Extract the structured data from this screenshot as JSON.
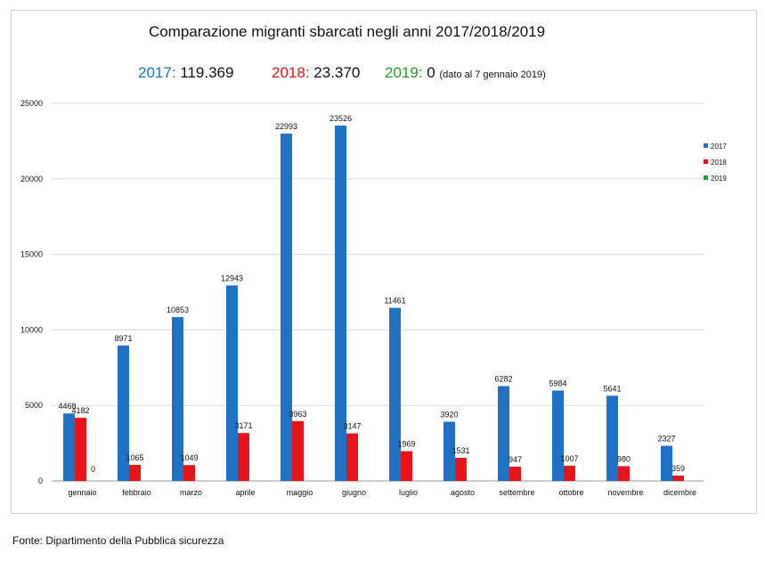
{
  "header": {
    "title": "Comparazione migranti sbarcati negli anni 2017/2018/2019",
    "totals": [
      {
        "label": "2017:",
        "value": "119.369",
        "color": "#1f72c4"
      },
      {
        "label": "2018:",
        "value": "23.370",
        "color": "#e8141b"
      },
      {
        "label": "2019:",
        "value": "0",
        "color": "#2a9a2a",
        "note": "(dato al 7 gennaio 2019)"
      }
    ]
  },
  "footer": {
    "source": "Fonte: Dipartimento della Pubblica sicurezza"
  },
  "chart_data": {
    "type": "bar",
    "title": "Comparazione migranti sbarcati negli anni 2017/2018/2019",
    "xlabel": "",
    "ylabel": "",
    "ylim": [
      0,
      25000
    ],
    "yticks": [
      0,
      5000,
      10000,
      15000,
      20000,
      25000
    ],
    "grid": true,
    "legend_position": "right",
    "categories": [
      "gennaio",
      "febbraio",
      "marzo",
      "aprile",
      "maggio",
      "giugno",
      "luglio",
      "agosto",
      "settembre",
      "ottobre",
      "novembre",
      "dicembre"
    ],
    "series": [
      {
        "name": "2017",
        "color": "#1f72c4",
        "values": [
          4468,
          8971,
          10853,
          12943,
          22993,
          23526,
          11461,
          3920,
          6282,
          5984,
          5641,
          2327
        ]
      },
      {
        "name": "2018",
        "color": "#e8141b",
        "values": [
          4182,
          1065,
          1049,
          3171,
          3963,
          3147,
          1969,
          1531,
          947,
          1007,
          980,
          359
        ]
      },
      {
        "name": "2019",
        "color": "#1fa04a",
        "values": [
          0,
          null,
          null,
          null,
          null,
          null,
          null,
          null,
          null,
          null,
          null,
          null
        ]
      }
    ]
  }
}
